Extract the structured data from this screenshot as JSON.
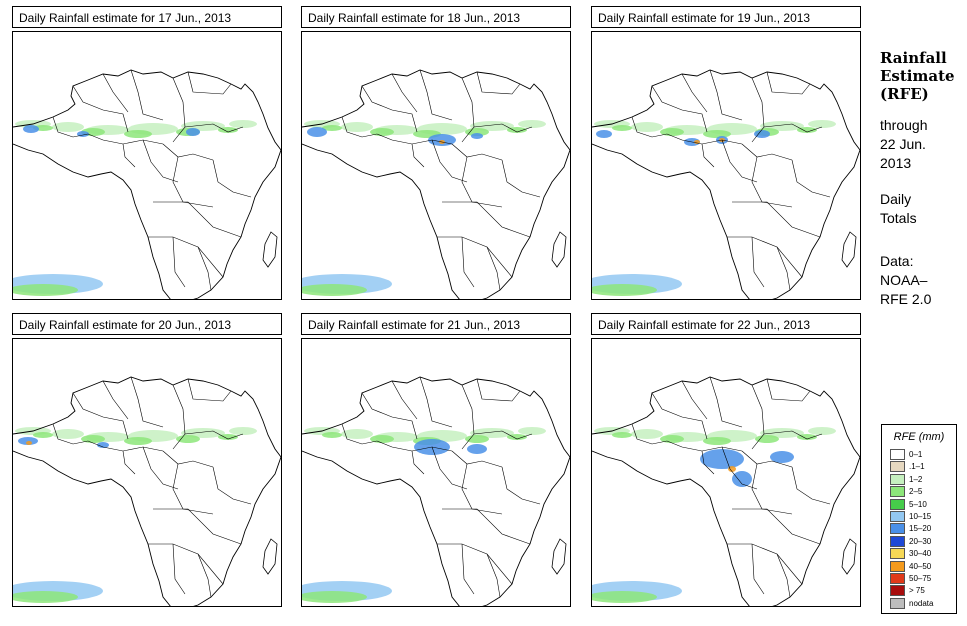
{
  "panels": [
    {
      "title": "Daily Rainfall estimate for  17 Jun., 2013"
    },
    {
      "title": "Daily Rainfall estimate for  18 Jun., 2013"
    },
    {
      "title": "Daily Rainfall estimate for  19 Jun., 2013"
    },
    {
      "title": "Daily Rainfall estimate for  20 Jun., 2013"
    },
    {
      "title": "Daily Rainfall estimate for  21 Jun., 2013"
    },
    {
      "title": "Daily Rainfall estimate for  22 Jun., 2013"
    }
  ],
  "side": {
    "heading_1": "Rainfall",
    "heading_2": "Estimate",
    "heading_3": "(RFE)",
    "through": "through",
    "through_date_1": "22 Jun.",
    "through_date_2": "2013",
    "daily_1": "Daily",
    "daily_2": "Totals",
    "data_label": "Data:",
    "data_src_1": "NOAA–",
    "data_src_2": "RFE 2.0"
  },
  "legend": {
    "title": "RFE (mm)",
    "items": [
      {
        "label": "0–1",
        "color": "#ffffff"
      },
      {
        "label": ".1–1",
        "color": "#e6d8c0"
      },
      {
        "label": "1–2",
        "color": "#c6f0bf"
      },
      {
        "label": "2–5",
        "color": "#8de67a"
      },
      {
        "label": "5–10",
        "color": "#46cc4a"
      },
      {
        "label": "10–15",
        "color": "#93c8f2"
      },
      {
        "label": "15–20",
        "color": "#4a90e8"
      },
      {
        "label": "20–30",
        "color": "#1f49d6"
      },
      {
        "label": "30–40",
        "color": "#f6d855"
      },
      {
        "label": "40–50",
        "color": "#f49a1c"
      },
      {
        "label": "50–75",
        "color": "#e03a1a"
      },
      {
        "label": "> 75",
        "color": "#a80d0d"
      },
      {
        "label": "nodata",
        "color": "#bdbdbd"
      }
    ]
  },
  "colors": {
    "light": "#c6f0bf",
    "green": "#8de67a",
    "lblue": "#93c8f2",
    "blue": "#4a90e8",
    "dblue": "#1f49d6",
    "orange": "#f49a1c",
    "red": "#e03a1a",
    "tan": "#e6d8c0"
  }
}
